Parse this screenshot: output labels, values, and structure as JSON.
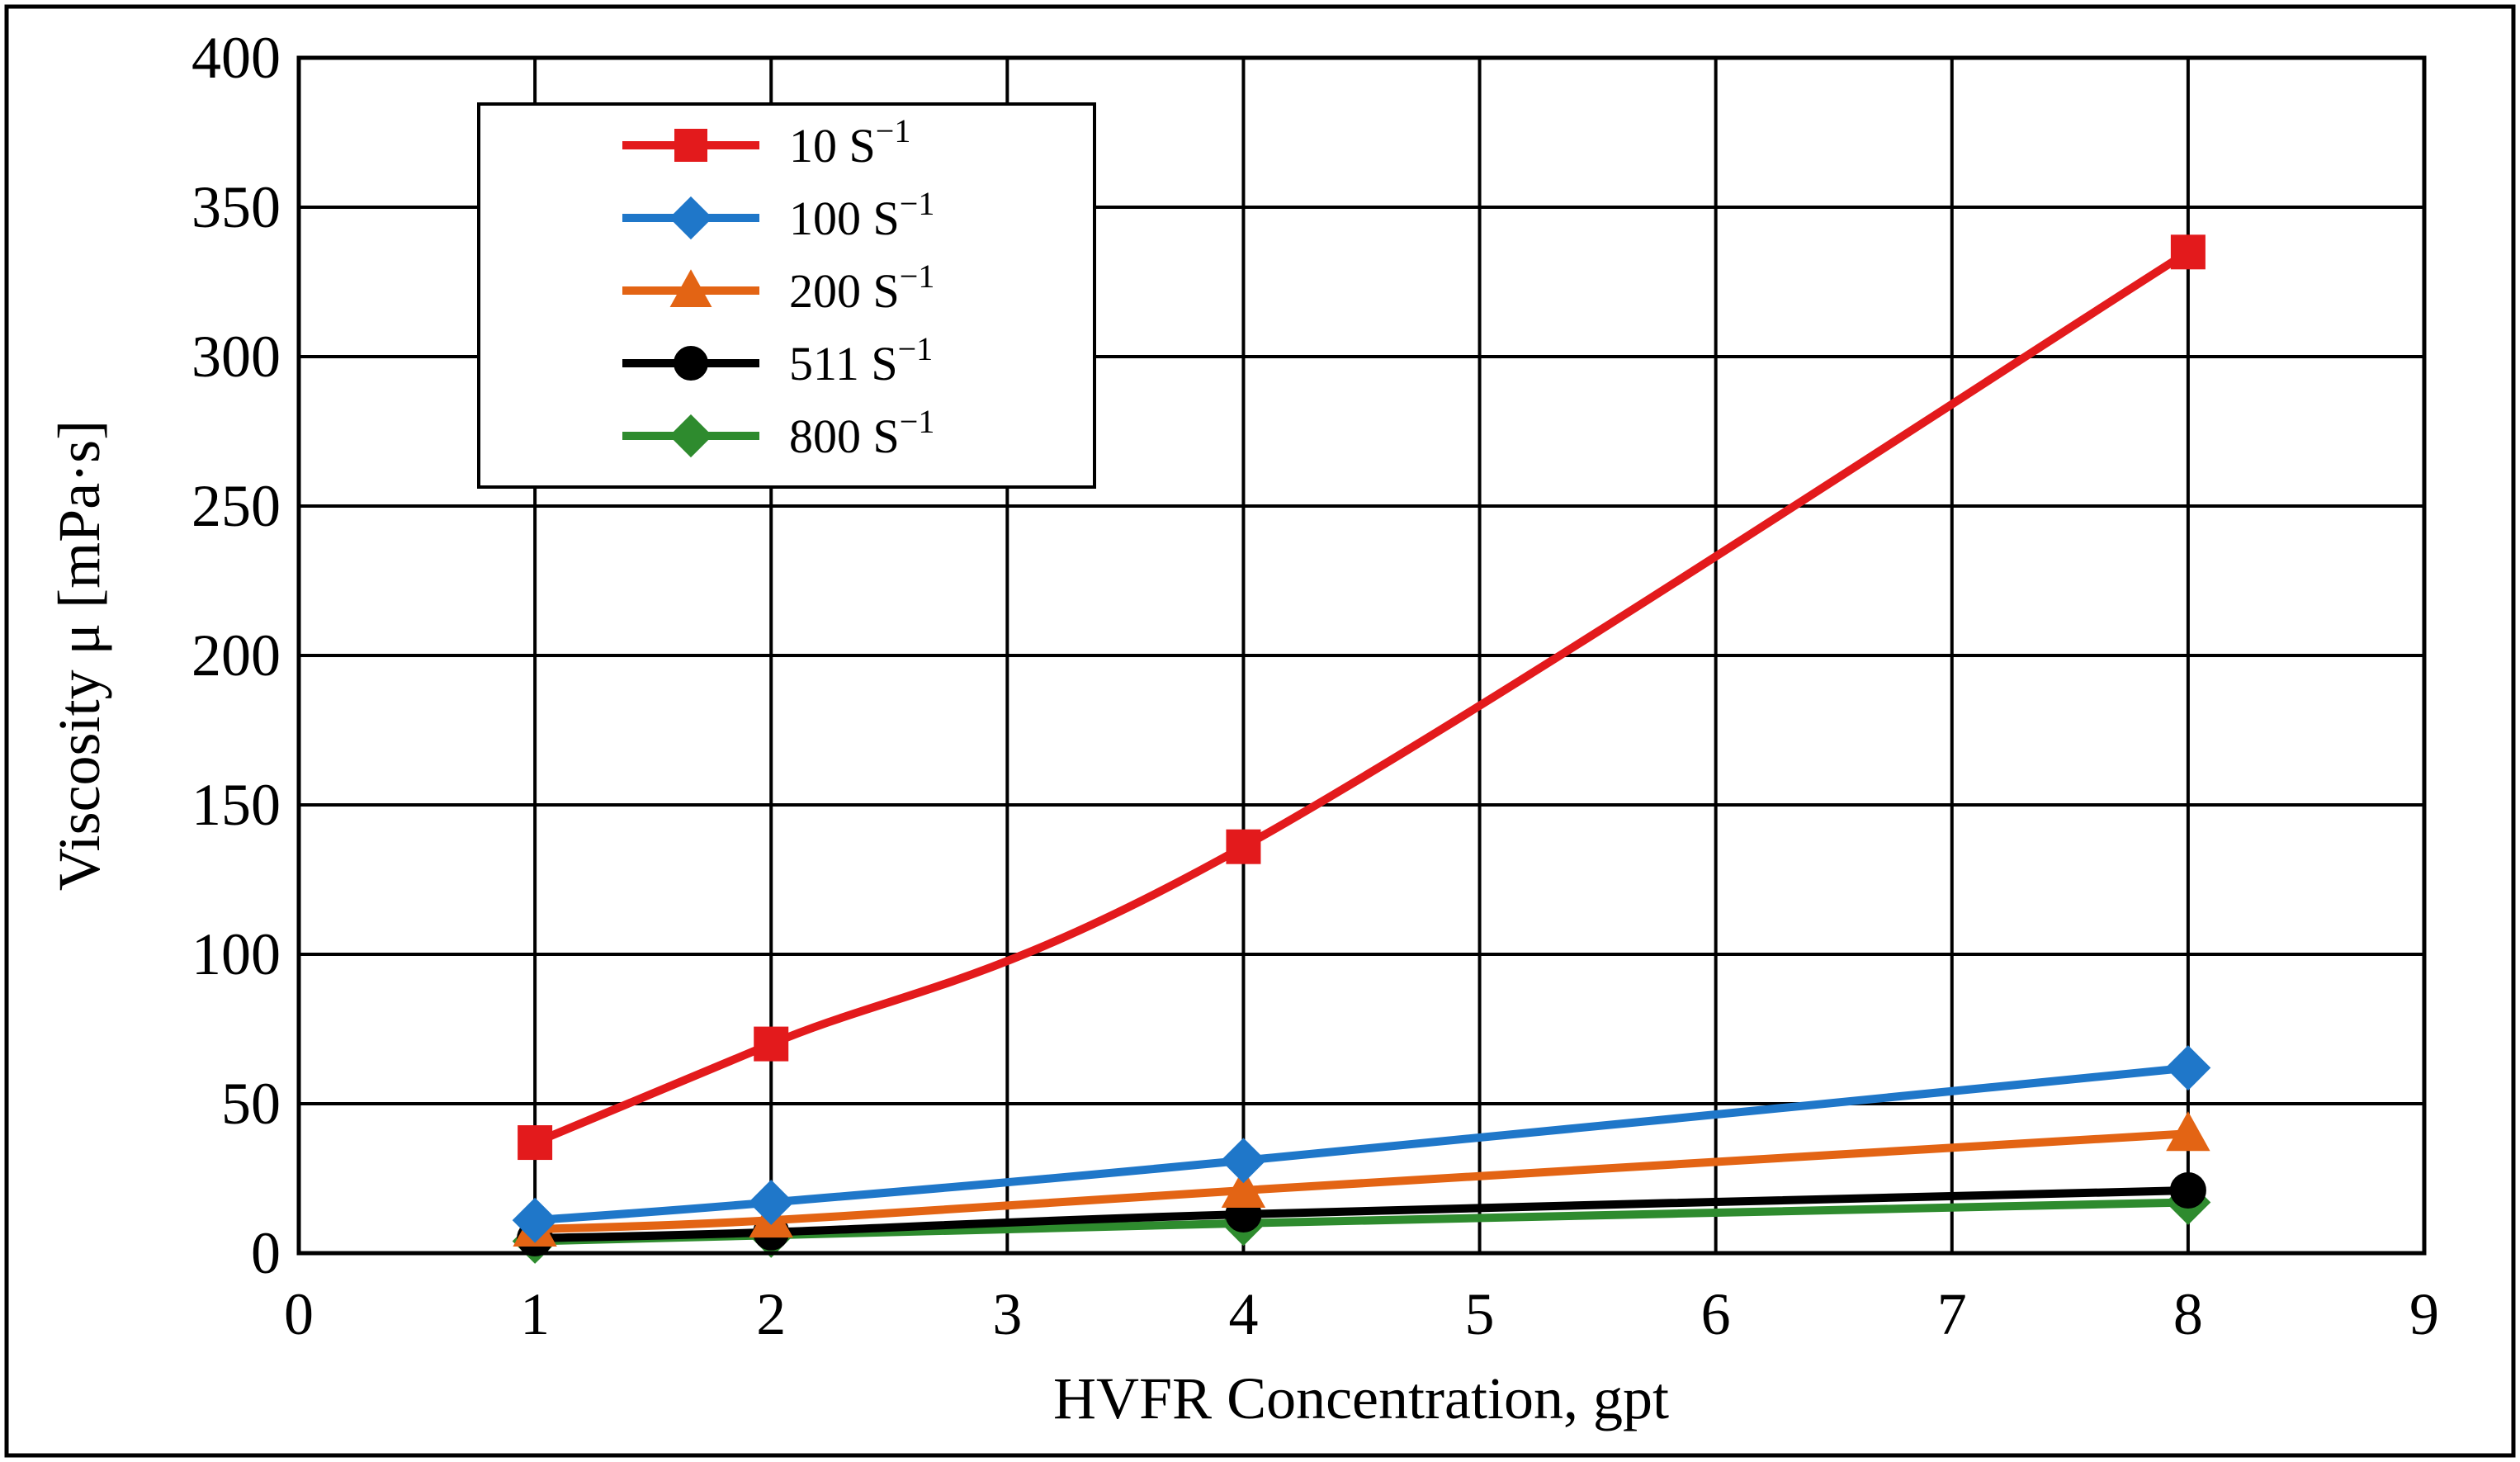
{
  "chart_data": {
    "type": "line",
    "title": "",
    "xlabel": "HVFR Concentration, gpt",
    "ylabel": "Viscosity μ [mPa·s]",
    "xlim": [
      0,
      9
    ],
    "ylim": [
      0,
      400
    ],
    "xticks": [
      "0",
      "1",
      "2",
      "3",
      "4",
      "5",
      "6",
      "7",
      "8",
      "9"
    ],
    "yticks": [
      "0",
      "50",
      "100",
      "150",
      "200",
      "250",
      "300",
      "350",
      "400"
    ],
    "grid": true,
    "legend_position": "top-left",
    "x": [
      1,
      2,
      4,
      8
    ],
    "series": [
      {
        "name": "10 S",
        "sup": "−1",
        "color": "#e31a1c",
        "marker": "square",
        "values": [
          37,
          70,
          136,
          335
        ]
      },
      {
        "name": "100 S",
        "sup": "−1",
        "color": "#1f77c9",
        "marker": "diamond",
        "values": [
          11,
          17,
          31,
          62
        ]
      },
      {
        "name": "200 S",
        "sup": "−1",
        "color": "#e36414",
        "marker": "triangle",
        "values": [
          8,
          11,
          21,
          40
        ]
      },
      {
        "name": "511 S",
        "sup": "−1",
        "color": "#000000",
        "marker": "circle",
        "values": [
          5,
          7,
          13,
          21
        ]
      },
      {
        "name": "800 S",
        "sup": "−1",
        "color": "#2e8b2e",
        "marker": "diamond",
        "values": [
          4,
          6,
          10,
          17
        ]
      }
    ]
  }
}
